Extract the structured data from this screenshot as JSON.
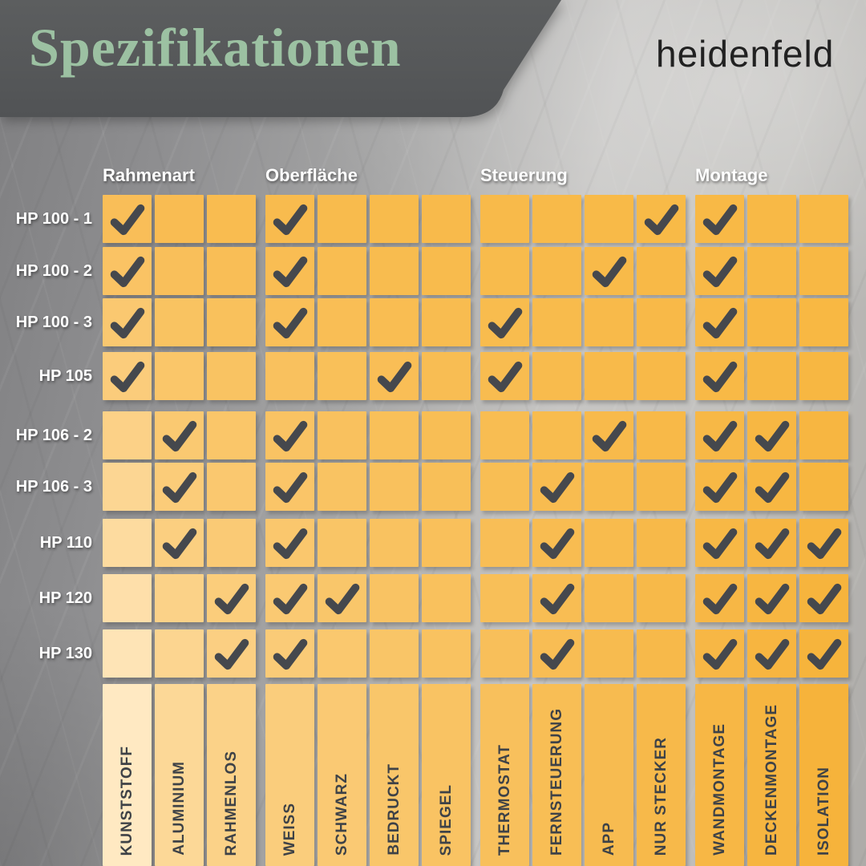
{
  "header": {
    "title": "Spezifikationen",
    "brand": "heidenfeld"
  },
  "chart_data": {
    "type": "table",
    "title": "Spezifikationen",
    "brand": "heidenfeld",
    "check_symbol": "✓",
    "check_meaning": "1 = Merkmal vorhanden",
    "column_groups": [
      {
        "label": "Rahmenart",
        "columns": [
          "KUNSTSTOFF",
          "ALUMINIUM",
          "RAHMENLOS"
        ]
      },
      {
        "label": "Oberfläche",
        "columns": [
          "WEISS",
          "SCHWARZ",
          "BEDRUCKT",
          "SPIEGEL"
        ]
      },
      {
        "label": "Steuerung",
        "columns": [
          "THERMOSTAT",
          "FERNSTEUERUNG",
          "APP",
          "NUR STECKER"
        ]
      },
      {
        "label": "Montage",
        "columns": [
          "WANDMONTAGE",
          "DECKENMONTAGE",
          "ISOLATION"
        ]
      }
    ],
    "rows": [
      {
        "label": "HP 100 - 1",
        "checks": [
          1,
          0,
          0,
          1,
          0,
          0,
          0,
          0,
          0,
          0,
          1,
          1,
          0,
          0
        ]
      },
      {
        "label": "HP 100 - 2",
        "checks": [
          1,
          0,
          0,
          1,
          0,
          0,
          0,
          0,
          0,
          1,
          0,
          1,
          0,
          0
        ]
      },
      {
        "label": "HP 100 - 3",
        "checks": [
          1,
          0,
          0,
          1,
          0,
          0,
          0,
          1,
          0,
          0,
          0,
          1,
          0,
          0
        ]
      },
      {
        "label": "HP 105",
        "checks": [
          1,
          0,
          0,
          0,
          0,
          1,
          0,
          1,
          0,
          0,
          0,
          1,
          0,
          0
        ]
      },
      {
        "label": "HP 106 - 2",
        "checks": [
          0,
          1,
          0,
          1,
          0,
          0,
          0,
          0,
          0,
          1,
          0,
          1,
          1,
          0
        ]
      },
      {
        "label": "HP 106 - 3",
        "checks": [
          0,
          1,
          0,
          1,
          0,
          0,
          0,
          0,
          1,
          0,
          0,
          1,
          1,
          0
        ]
      },
      {
        "label": "HP 110",
        "checks": [
          0,
          1,
          0,
          1,
          0,
          0,
          0,
          0,
          1,
          0,
          0,
          1,
          1,
          1
        ]
      },
      {
        "label": "HP 120",
        "checks": [
          0,
          0,
          1,
          1,
          1,
          0,
          0,
          0,
          1,
          0,
          0,
          1,
          1,
          1
        ]
      },
      {
        "label": "HP 130",
        "checks": [
          0,
          0,
          1,
          1,
          0,
          0,
          0,
          0,
          1,
          0,
          0,
          1,
          1,
          1
        ]
      }
    ]
  },
  "colors": {
    "cell_orange": "#f8b945",
    "cell_cream": "#ffe9c2",
    "check": "#45484d",
    "title_green": "#9cc1a2",
    "banner_gray": "#565859",
    "header_text": "#ffffff",
    "strip_text": "#3e4247"
  }
}
